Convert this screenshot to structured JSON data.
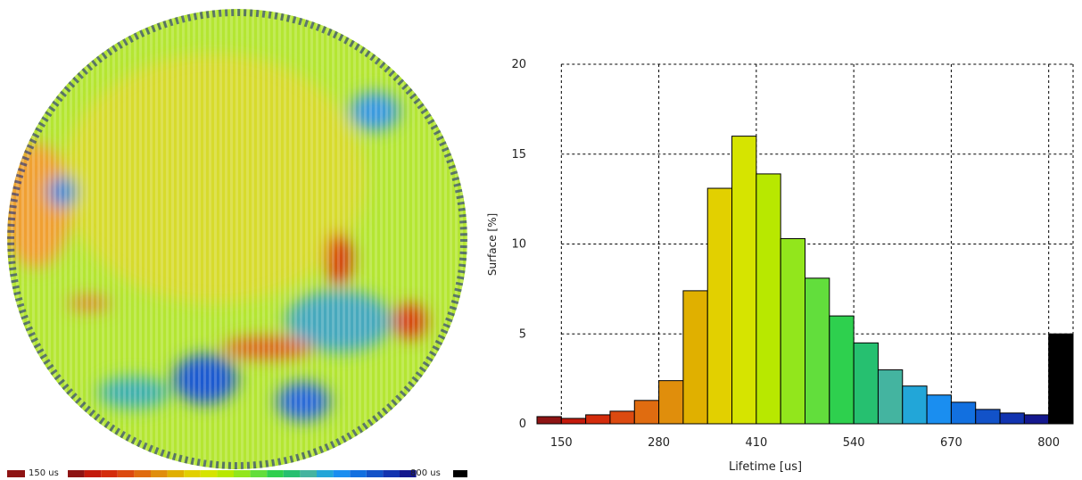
{
  "chart_data": {
    "type": "histogram",
    "xlabel": "Lifetime [us]",
    "ylabel": "Surface [%]",
    "bins": [
      117.5,
      150,
      182.5,
      215,
      247.5,
      280,
      312.5,
      345,
      377.5,
      410,
      442.5,
      475,
      507.5,
      540,
      572.5,
      605,
      637.5,
      670,
      702.5,
      735,
      767.5,
      800,
      832.5
    ],
    "values": [
      0.4,
      0.3,
      0.5,
      0.7,
      1.3,
      2.4,
      7.4,
      13.1,
      16.0,
      13.9,
      10.3,
      8.1,
      6.0,
      4.5,
      3.0,
      2.1,
      1.6,
      1.2,
      0.8,
      0.6,
      0.5,
      5.0
    ],
    "colors": [
      "#8e1414",
      "#c41a0c",
      "#d42c0c",
      "#dc4a10",
      "#e06c10",
      "#e08e0c",
      "#e0b000",
      "#e2d000",
      "#d6e400",
      "#b8e800",
      "#92e61c",
      "#62de3c",
      "#2ed04e",
      "#26c070",
      "#44b4a0",
      "#22a6d8",
      "#1a8ef0",
      "#1270e0",
      "#1252c8",
      "#1234b0",
      "#14188e",
      "#000000"
    ],
    "xlim": [
      117.5,
      832.5
    ],
    "ylim": [
      0,
      20
    ],
    "xticks": [
      150,
      280,
      410,
      540,
      670,
      800
    ],
    "yticks": [
      0,
      5,
      10,
      15,
      20
    ],
    "grid": true,
    "colorbar": {
      "min_label": "150 us",
      "max_label": "800 us"
    }
  }
}
